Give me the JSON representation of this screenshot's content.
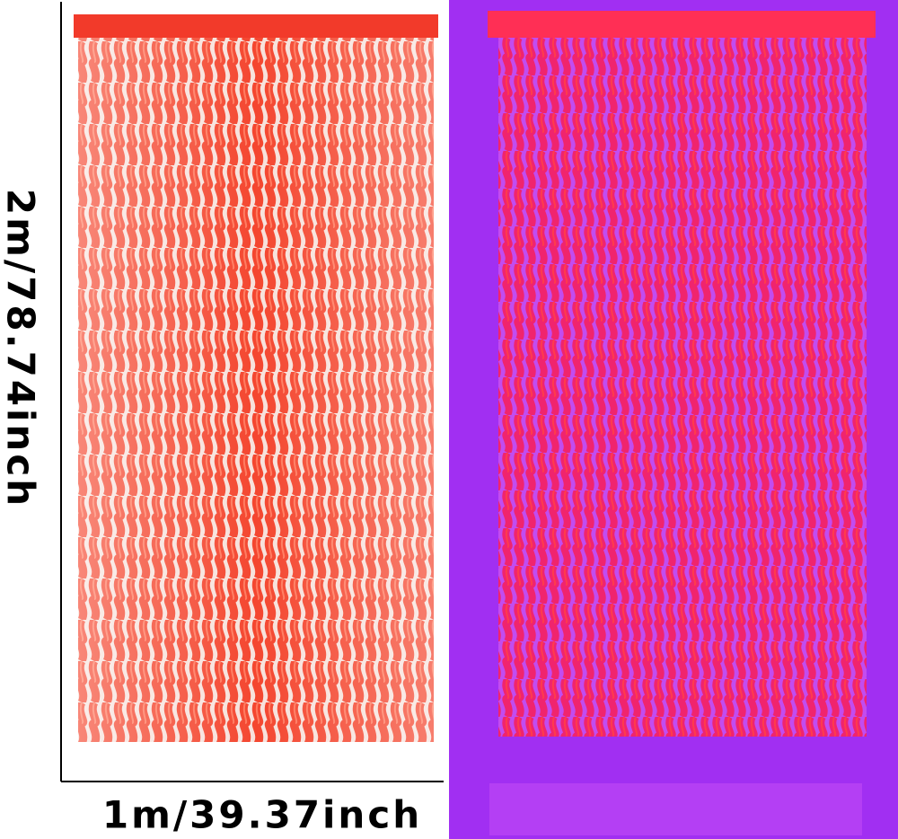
{
  "dimensions": {
    "height": "2m/78.74inch",
    "width": "1m/39.37inch"
  }
}
